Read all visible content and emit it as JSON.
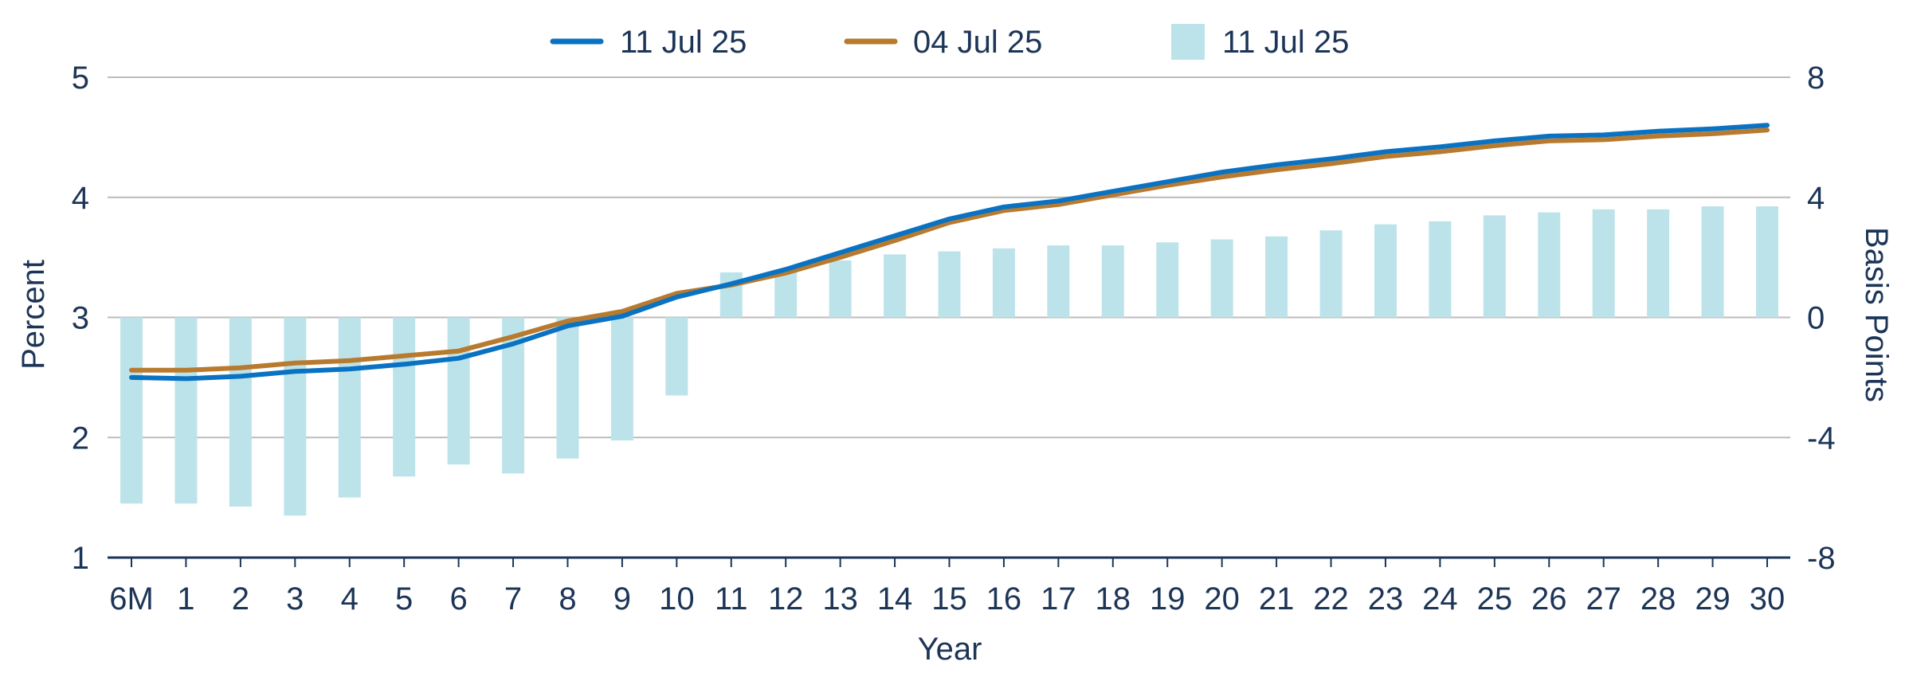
{
  "chart_data": {
    "type": "bar+line",
    "categories": [
      "6M",
      "1",
      "2",
      "3",
      "4",
      "5",
      "6",
      "7",
      "8",
      "9",
      "10",
      "11",
      "12",
      "13",
      "14",
      "15",
      "16",
      "17",
      "18",
      "19",
      "20",
      "21",
      "22",
      "23",
      "24",
      "25",
      "26",
      "27",
      "28",
      "29",
      "30"
    ],
    "xlabel": "Year",
    "ylabel_left": "Percent",
    "ylabel_right": "Basis Points",
    "ylim_left": [
      1,
      5
    ],
    "yticks_left": [
      "1",
      "2",
      "3",
      "4",
      "5"
    ],
    "ylim_right": [
      -8,
      8
    ],
    "yticks_right": [
      "-8",
      "-4",
      "0",
      "4",
      "8"
    ],
    "grid": true,
    "legend_position": "top",
    "colors": {
      "line1": "#0a72c2",
      "line2": "#b87a2e",
      "bars": "#bde3ea",
      "grid": "#bcbcbc",
      "axis": "#1c3557",
      "text": "#1c3557"
    },
    "legend": [
      {
        "label": "11 Jul 25",
        "kind": "line",
        "color": "#0a72c2"
      },
      {
        "label": "04 Jul 25",
        "kind": "line",
        "color": "#b87a2e"
      },
      {
        "label": "11 Jul 25",
        "kind": "bar",
        "color": "#bde3ea"
      }
    ],
    "series": [
      {
        "name": "11 Jul 25",
        "type": "line",
        "axis": "left",
        "values": [
          2.5,
          2.49,
          2.51,
          2.55,
          2.57,
          2.61,
          2.66,
          2.78,
          2.93,
          3.01,
          3.17,
          3.28,
          3.4,
          3.54,
          3.68,
          3.82,
          3.92,
          3.97,
          4.05,
          4.13,
          4.21,
          4.27,
          4.32,
          4.38,
          4.42,
          4.47,
          4.51,
          4.52,
          4.55,
          4.57,
          4.6
        ]
      },
      {
        "name": "04 Jul 25",
        "type": "line",
        "axis": "left",
        "values": [
          2.56,
          2.56,
          2.58,
          2.62,
          2.64,
          2.68,
          2.72,
          2.84,
          2.97,
          3.05,
          3.2,
          3.27,
          3.37,
          3.5,
          3.64,
          3.79,
          3.89,
          3.94,
          4.02,
          4.1,
          4.17,
          4.23,
          4.28,
          4.34,
          4.38,
          4.43,
          4.47,
          4.48,
          4.51,
          4.53,
          4.56
        ]
      },
      {
        "name": "11 Jul 25",
        "type": "bar",
        "axis": "right",
        "values": [
          -6.2,
          -6.2,
          -6.3,
          -6.6,
          -6.0,
          -5.3,
          -4.9,
          -5.2,
          -4.7,
          -4.1,
          -2.6,
          1.5,
          1.5,
          1.9,
          2.1,
          2.2,
          2.3,
          2.4,
          2.4,
          2.5,
          2.6,
          2.7,
          2.9,
          3.1,
          3.2,
          3.4,
          3.5,
          3.6,
          3.6,
          3.7,
          3.7
        ]
      }
    ]
  }
}
